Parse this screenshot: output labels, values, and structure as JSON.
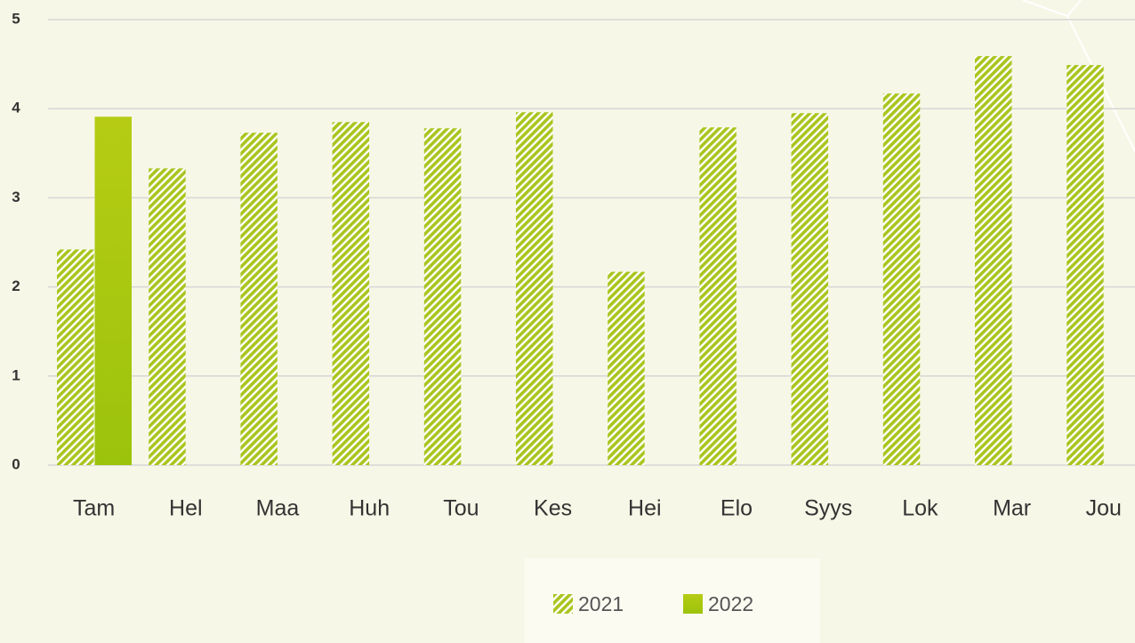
{
  "chart_data": {
    "type": "bar",
    "categories": [
      "Tam",
      "Hel",
      "Maa",
      "Huh",
      "Tou",
      "Kes",
      "Hei",
      "Elo",
      "Syys",
      "Lok",
      "Mar",
      "Jou"
    ],
    "series": [
      {
        "name": "2021",
        "color": "#a9c51f",
        "hatch": true,
        "values": [
          2.42,
          3.33,
          3.73,
          3.85,
          3.78,
          3.96,
          2.17,
          3.79,
          3.95,
          4.17,
          4.59,
          4.49
        ]
      },
      {
        "name": "2022",
        "color": "#9cc30c",
        "hatch": false,
        "values": [
          3.91,
          null,
          null,
          null,
          null,
          null,
          null,
          null,
          null,
          null,
          null,
          null
        ]
      }
    ],
    "ylim": [
      0,
      5
    ],
    "yticks": [
      0,
      1,
      2,
      3,
      4,
      5
    ],
    "grid": true,
    "legend": "bottom"
  }
}
